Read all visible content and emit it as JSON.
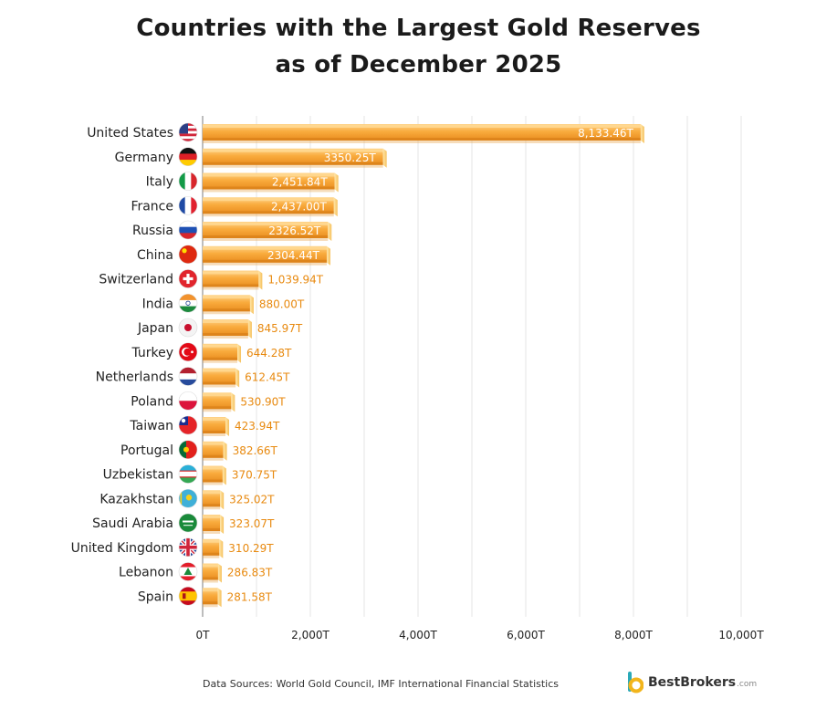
{
  "title_line1": "Countries with the Largest Gold Reserves",
  "title_line2": "as of December 2025",
  "chart_data": {
    "type": "bar",
    "orientation": "horizontal",
    "categories": [
      "United States",
      "Germany",
      "Italy",
      "France",
      "Russia",
      "China",
      "Switzerland",
      "India",
      "Japan",
      "Turkey",
      "Netherlands",
      "Poland",
      "Taiwan",
      "Portugal",
      "Uzbekistan",
      "Kazakhstan",
      "Saudi Arabia",
      "United Kingdom",
      "Lebanon",
      "Spain"
    ],
    "values": [
      8133.46,
      3350.25,
      2451.84,
      2437.0,
      2326.52,
      2304.44,
      1039.94,
      880.0,
      845.97,
      644.28,
      612.45,
      530.9,
      423.94,
      382.66,
      370.75,
      325.02,
      323.07,
      310.29,
      286.83,
      281.58
    ],
    "value_labels": [
      "8,133.46T",
      "3350.25T",
      "2,451.84T",
      "2,437.00T",
      "2326.52T",
      "2304.44T",
      "1,039.94T",
      "880.00T",
      "845.97T",
      "644.28T",
      "612.45T",
      "530.90T",
      "423.94T",
      "382.66T",
      "370.75T",
      "325.02T",
      "323.07T",
      "310.29T",
      "286.83T",
      "281.58T"
    ],
    "xlim": [
      0,
      10000
    ],
    "xticks": [
      "0T",
      "2,000T",
      "4,000T",
      "6,000T",
      "8,000T",
      "10,000T"
    ],
    "grid": true,
    "bar_color": "#f7a83b"
  },
  "flags": [
    "flag-us",
    "flag-de",
    "flag-it",
    "flag-fr",
    "flag-ru",
    "flag-cn",
    "flag-ch",
    "flag-in",
    "flag-jp",
    "flag-tr",
    "flag-nl",
    "flag-pl",
    "flag-tw",
    "flag-pt",
    "flag-uz",
    "flag-kz",
    "flag-sa",
    "flag-gb",
    "flag-lb",
    "flag-es"
  ],
  "footer": {
    "sources": "Data Sources: World Gold Council, IMF International Financial Statistics",
    "brand_name": "BestBrokers",
    "brand_domain": ".com"
  }
}
